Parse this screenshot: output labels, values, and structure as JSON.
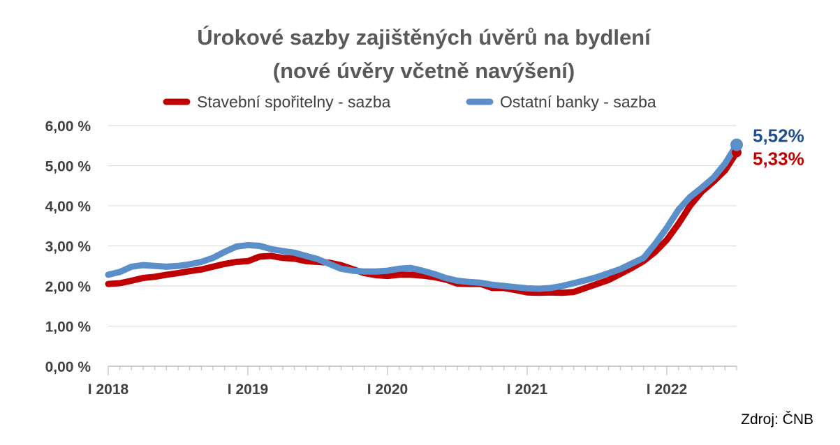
{
  "chart_data": {
    "type": "line",
    "title_line1": "Úrokové sazby zajištěných úvěrů na bydlení",
    "title_line2": "(nové úvěry včetně navýšení)",
    "xlabel": "",
    "ylabel": "",
    "ylim": [
      0,
      6
    ],
    "y_ticks": [
      "0,00 %",
      "1,00 %",
      "2,00 %",
      "3,00 %",
      "4,00 %",
      "5,00 %",
      "6,00 %"
    ],
    "x_labels": [
      "I 2018",
      "I 2019",
      "I 2020",
      "I 2021",
      "I 2022"
    ],
    "grid": true,
    "legend_position": "top",
    "colors": {
      "stavebni": "#c00000",
      "ostatni": "#5b8fc9",
      "ostatni_label": "#1f4e8c",
      "stavebni_label": "#c00000"
    },
    "series": [
      {
        "name": "Stavební spořitelny - sazba",
        "values": [
          2.05,
          2.07,
          2.13,
          2.2,
          2.23,
          2.28,
          2.32,
          2.37,
          2.41,
          2.48,
          2.55,
          2.6,
          2.62,
          2.73,
          2.75,
          2.7,
          2.68,
          2.62,
          2.6,
          2.58,
          2.52,
          2.42,
          2.32,
          2.27,
          2.25,
          2.28,
          2.28,
          2.26,
          2.22,
          2.16,
          2.06,
          2.05,
          2.05,
          1.95,
          1.95,
          1.9,
          1.84,
          1.83,
          1.84,
          1.83,
          1.85,
          1.95,
          2.05,
          2.15,
          2.3,
          2.45,
          2.62,
          2.85,
          3.15,
          3.55,
          4.0,
          4.35,
          4.6,
          4.88,
          5.33
        ],
        "end_label": "5,33%"
      },
      {
        "name": "Ostatní banky - sazba",
        "values": [
          2.28,
          2.35,
          2.48,
          2.52,
          2.5,
          2.48,
          2.5,
          2.54,
          2.6,
          2.7,
          2.85,
          2.98,
          3.02,
          3.0,
          2.92,
          2.87,
          2.83,
          2.75,
          2.67,
          2.55,
          2.43,
          2.38,
          2.36,
          2.36,
          2.38,
          2.43,
          2.45,
          2.38,
          2.3,
          2.2,
          2.13,
          2.1,
          2.08,
          2.03,
          2.0,
          1.97,
          1.94,
          1.93,
          1.95,
          2.0,
          2.07,
          2.14,
          2.22,
          2.32,
          2.42,
          2.56,
          2.7,
          3.05,
          3.45,
          3.9,
          4.22,
          4.45,
          4.7,
          5.05,
          5.52
        ],
        "end_label": "5,52%"
      }
    ]
  },
  "source": "Zdroj: ČNB"
}
